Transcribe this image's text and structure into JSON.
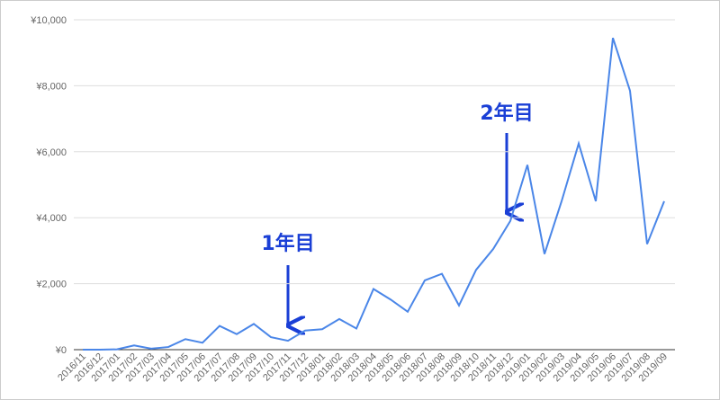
{
  "chart_data": {
    "type": "line",
    "categories": [
      "2016/11",
      "2016/12",
      "2017/01",
      "2017/02",
      "2017/03",
      "2017/04",
      "2017/05",
      "2017/06",
      "2017/07",
      "2017/08",
      "2017/09",
      "2017/10",
      "2017/11",
      "2017/12",
      "2018/01",
      "2018/02",
      "2018/03",
      "2018/04",
      "2018/05",
      "2018/06",
      "2018/07",
      "2018/08",
      "2018/09",
      "2018/10",
      "2018/11",
      "2018/12",
      "2019/01",
      "2019/02",
      "2019/03",
      "2019/04",
      "2019/05",
      "2019/06",
      "2019/07",
      "2019/08",
      "2019/09"
    ],
    "series": [
      {
        "color": "#4a86e8",
        "values": [
          0,
          0,
          10,
          130,
          30,
          80,
          320,
          210,
          720,
          470,
          780,
          380,
          270,
          580,
          620,
          930,
          640,
          1840,
          1520,
          1150,
          2100,
          2300,
          1340,
          2420,
          3050,
          3900,
          5600,
          2900,
          4500,
          6250,
          4500,
          9450,
          7850,
          3200,
          4500
        ]
      }
    ],
    "ylim": [
      0,
      10000
    ],
    "yticks": [
      {
        "value": 0,
        "label": "¥0"
      },
      {
        "value": 2000,
        "label": "¥2,000"
      },
      {
        "value": 4000,
        "label": "¥4,000"
      },
      {
        "value": 6000,
        "label": "¥6,000"
      },
      {
        "value": 8000,
        "label": "¥8,000"
      },
      {
        "value": 10000,
        "label": "¥10,000"
      }
    ],
    "grid": true,
    "annotations": [
      {
        "text": "1年目"
      },
      {
        "text": "2年目"
      }
    ]
  }
}
